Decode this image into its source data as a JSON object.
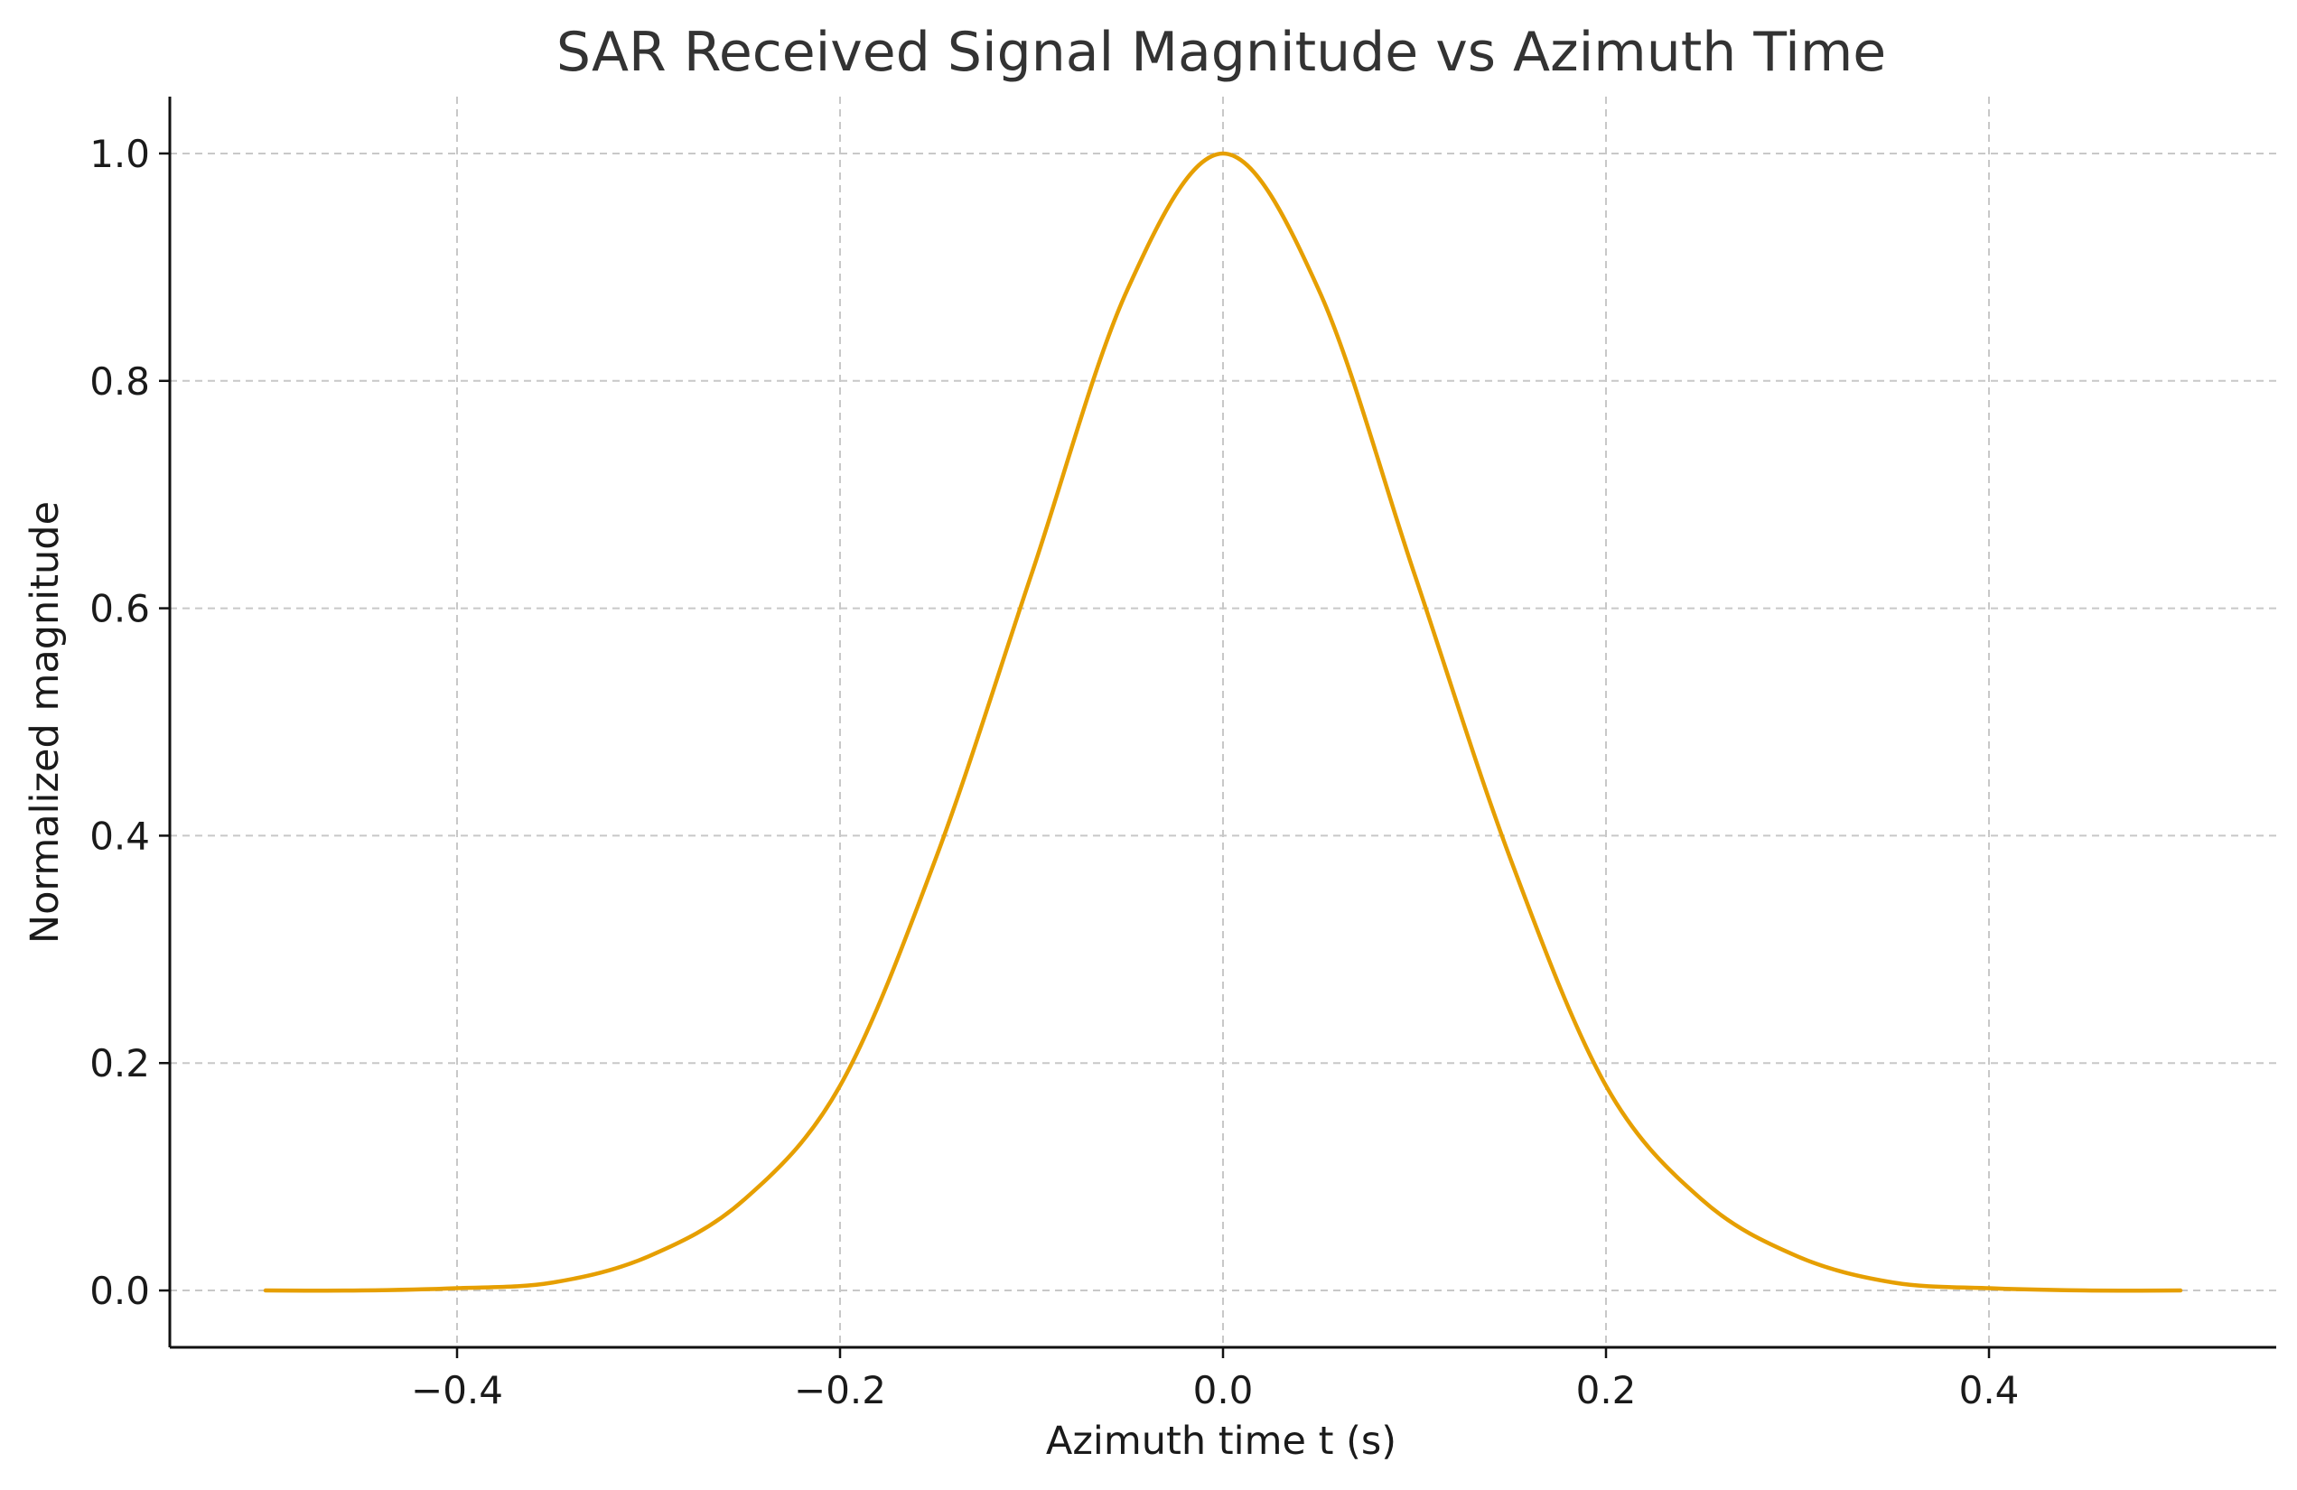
{
  "chart_data": {
    "type": "line",
    "title": "SAR Received Signal Magnitude vs Azimuth Time",
    "xlabel": "Azimuth time t (s)",
    "ylabel": "Normalized magnitude",
    "xlim": [
      -0.55,
      0.55
    ],
    "ylim": [
      -0.05,
      1.05
    ],
    "grid": true,
    "x_ticks": [
      -0.4,
      -0.2,
      0.0,
      0.2,
      0.4
    ],
    "x_tick_labels": [
      "−0.4",
      "−0.2",
      "0.0",
      "0.2",
      "0.4"
    ],
    "y_ticks": [
      0.0,
      0.2,
      0.4,
      0.6,
      0.8,
      1.0
    ],
    "y_tick_labels": [
      "0.0",
      "0.2",
      "0.4",
      "0.6",
      "0.8",
      "1.0"
    ],
    "series": [
      {
        "color": "#e69f00",
        "x": [
          -0.5,
          -0.45,
          -0.4,
          -0.35,
          -0.3,
          -0.25,
          -0.2,
          -0.15,
          -0.1,
          -0.05,
          0.0,
          0.05,
          0.1,
          0.15,
          0.2,
          0.25,
          0.3,
          0.35,
          0.4,
          0.45,
          0.5
        ],
        "y": [
          0.0,
          0.0,
          0.002,
          0.007,
          0.03,
          0.08,
          0.18,
          0.38,
          0.63,
          0.88,
          1.0,
          0.88,
          0.63,
          0.38,
          0.18,
          0.08,
          0.03,
          0.007,
          0.002,
          0.0,
          0.0
        ]
      }
    ]
  }
}
